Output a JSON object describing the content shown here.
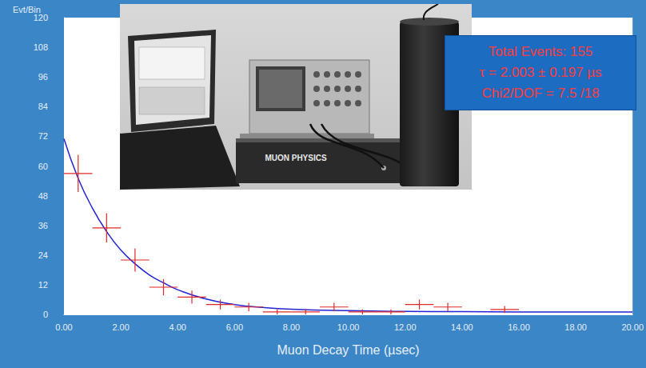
{
  "chart_data": {
    "type": "histogram",
    "y_label": "Evt/Bin",
    "x_label": "Muon Decay Time (µsec)",
    "bins": [
      0,
      1,
      2,
      3,
      4,
      5,
      6,
      7,
      8,
      9,
      10,
      11,
      12,
      13,
      14,
      15,
      16,
      17,
      18,
      19,
      20
    ],
    "counts": [
      57,
      35,
      22,
      11,
      7,
      4,
      3,
      1,
      1,
      3,
      1,
      1,
      4,
      3,
      null,
      2,
      null,
      null,
      null,
      null
    ],
    "errors": [
      7.5,
      5.9,
      4.7,
      3.3,
      2.6,
      2,
      1.7,
      1,
      1,
      1.7,
      1,
      1,
      2,
      1.7,
      null,
      1.4,
      null,
      null,
      null,
      null
    ],
    "color": "#e02828",
    "marker": "cross",
    "fit": {
      "type": "line",
      "color": "#2424d8",
      "x": [
        0,
        0.5,
        1,
        1.5,
        2,
        2.5,
        3,
        3.5,
        4,
        5,
        6,
        7,
        8,
        10,
        12,
        14,
        16,
        18,
        20
      ],
      "values": [
        71,
        55,
        43,
        33.5,
        26,
        20.5,
        16,
        12.8,
        10,
        6.2,
        4,
        2.8,
        2.1,
        1.5,
        1.2,
        1.1,
        1,
        1,
        1
      ]
    },
    "xlim": [
      0,
      20
    ],
    "xticks": [
      {
        "value": 0,
        "label": "0.00"
      },
      {
        "value": 2,
        "label": "2.00"
      },
      {
        "value": 4,
        "label": "4.00"
      },
      {
        "value": 6,
        "label": "6.00"
      },
      {
        "value": 8,
        "label": "8.00"
      },
      {
        "value": 10,
        "label": "10.00"
      },
      {
        "value": 12,
        "label": "12.00"
      },
      {
        "value": 14,
        "label": "14.00"
      },
      {
        "value": 16,
        "label": "16.00"
      },
      {
        "value": 18,
        "label": "18.00"
      },
      {
        "value": 20,
        "label": "20.00"
      }
    ],
    "ylim": [
      0,
      120
    ],
    "yticks": [
      0,
      12,
      24,
      36,
      48,
      60,
      72,
      84,
      96,
      108,
      120
    ],
    "grid": false,
    "info_box": [
      "Total Events: 155",
      "τ = 2.003 ± 0.197 µs",
      "Chi2/DOF = 7.5 /18"
    ],
    "inset_photo": {
      "panel_label": "MUON PHYSICS"
    }
  }
}
